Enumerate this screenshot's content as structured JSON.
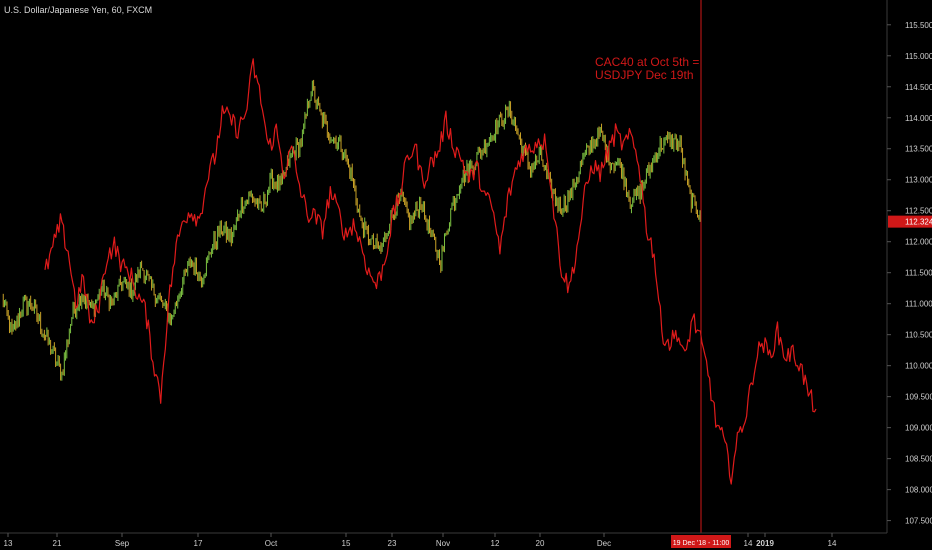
{
  "header": {
    "title": "U.S. Dollar/Japanese Yen, 60, FXCM"
  },
  "chart_data": {
    "type": "line",
    "title": "U.S. Dollar/Japanese Yen, 60, FXCM",
    "ylim": [
      107.3,
      115.9
    ],
    "y_ticks": [
      "107.500",
      "108.000",
      "108.500",
      "109.000",
      "109.500",
      "110.000",
      "110.500",
      "111.000",
      "111.500",
      "112.000",
      "112.500",
      "113.000",
      "113.500",
      "114.000",
      "114.500",
      "115.000",
      "115.500"
    ],
    "x_ticks": [
      "13",
      "21",
      "Sep",
      "17",
      "Oct",
      "15",
      "23",
      "Nov",
      "12",
      "20",
      "Dec",
      "14",
      "2019",
      "14"
    ],
    "last_price": "112.324",
    "marker_date": "19 Dec '18 - 11:00",
    "grid": false,
    "annotation": [
      "CAC40 at Oct 5th =",
      "USDJPY Dec 19th"
    ],
    "colors": {
      "usdjpy_up": "#7cc242",
      "usdjpy_down": "#c9a227",
      "cac40": "#e01b1b",
      "marker": "#d01818",
      "background": "#000000"
    },
    "series": [
      {
        "values": [
          111.1,
          110.5,
          110.95,
          111.0,
          110.6,
          110.25,
          109.85,
          110.8,
          111.15,
          110.9,
          111.25,
          111.0,
          111.35,
          111.2,
          111.6,
          111.25,
          111.0,
          110.75,
          111.3,
          111.7,
          111.4,
          111.9,
          112.2,
          112.05,
          112.6,
          112.75,
          112.5,
          113.0,
          112.9,
          113.4,
          113.6,
          114.5,
          114.0,
          113.7,
          113.55,
          113.1,
          112.3,
          112.0,
          111.85,
          112.4,
          112.7,
          112.3,
          112.65,
          112.1,
          111.7,
          112.5,
          113.0,
          113.2,
          113.45,
          113.7,
          113.95,
          114.1,
          113.6,
          113.15,
          113.4,
          112.85,
          112.55,
          112.75,
          113.2,
          113.55,
          113.75,
          113.3,
          113.25,
          112.65,
          112.8,
          113.2,
          113.55,
          113.65,
          113.55,
          112.7,
          112.45
        ]
      },
      {
        "values": [
          111.5,
          111.9,
          112.3,
          111.85,
          111.0,
          111.4,
          110.6,
          111.0,
          111.75,
          111.95,
          111.6,
          111.5,
          111.15,
          110.9,
          110.1,
          109.5,
          111.0,
          111.9,
          112.4,
          112.5,
          112.35,
          113.0,
          113.35,
          114.05,
          114.0,
          113.8,
          114.05,
          114.85,
          114.3,
          113.5,
          113.8,
          113.1,
          113.5,
          112.9,
          112.45,
          112.4,
          112.2,
          112.8,
          112.5,
          112.1,
          112.3,
          111.95,
          111.5,
          111.3,
          111.65,
          112.35,
          112.75,
          113.35,
          113.55,
          112.95,
          113.25,
          113.45,
          113.95,
          113.55,
          113.35,
          113.0,
          113.2,
          112.75,
          112.55,
          111.85,
          112.65,
          113.15,
          113.45,
          113.5,
          113.65,
          113.6,
          112.5,
          111.55,
          111.25,
          111.9,
          112.75,
          113.25,
          113.1,
          113.45,
          113.75,
          113.55,
          113.7,
          113.3,
          112.25,
          111.8,
          110.55,
          110.35,
          110.55,
          110.1,
          110.8,
          110.4,
          109.9,
          109.1,
          108.8,
          108.25,
          108.9,
          109.25,
          110.0,
          110.4,
          110.15,
          110.55,
          110.15,
          110.2,
          110.0,
          109.55,
          109.3
        ]
      }
    ]
  }
}
